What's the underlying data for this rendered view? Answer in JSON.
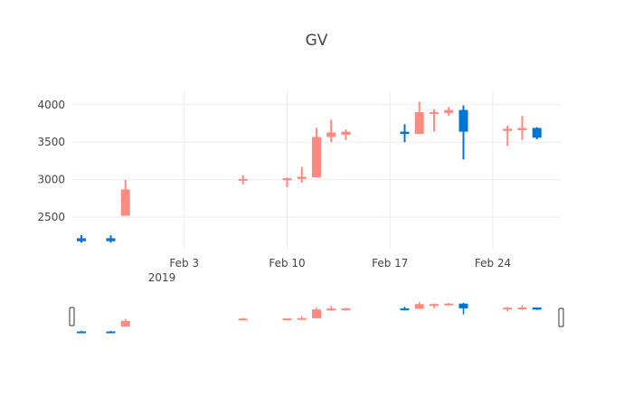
{
  "chart_data": {
    "type": "candlestick",
    "title": "GV",
    "xlabel": "",
    "ylabel": "",
    "ylim": [
      2080,
      4190
    ],
    "x_range": [
      "2019-01-27",
      "2019-02-28"
    ],
    "y_ticks": [
      2500,
      3000,
      3500,
      4000
    ],
    "y_tick_labels": [
      "2500",
      "3000",
      "3500",
      "4000"
    ],
    "x_ticks": [
      "2019-02-03",
      "2019-02-10",
      "2019-02-17",
      "2019-02-24"
    ],
    "x_tick_labels": [
      "Feb 3",
      "Feb 10",
      "Feb 17",
      "Feb 24"
    ],
    "x_tick_sublabel": "2019",
    "grid": true,
    "legend": "none",
    "colors": {
      "increasing": "#0074D9",
      "decreasing": "#FF851B",
      "decreasing_fill": "#FF8A80",
      "grid": "#eeeeee",
      "text": "#444444"
    },
    "rangeslider": true,
    "candles": [
      {
        "date": "2019-01-27",
        "open": 2180,
        "high": 2260,
        "low": 2160,
        "close": 2220
      },
      {
        "date": "2019-01-29",
        "open": 2180,
        "high": 2260,
        "low": 2160,
        "close": 2220
      },
      {
        "date": "2019-01-30",
        "open": 2870,
        "high": 3000,
        "low": 2520,
        "close": 2520
      },
      {
        "date": "2019-02-07",
        "open": 3010,
        "high": 3060,
        "low": 2940,
        "close": 2990
      },
      {
        "date": "2019-02-10",
        "open": 3020,
        "high": 3030,
        "low": 2900,
        "close": 3000
      },
      {
        "date": "2019-02-11",
        "open": 3040,
        "high": 3170,
        "low": 2960,
        "close": 3010
      },
      {
        "date": "2019-02-12",
        "open": 3570,
        "high": 3690,
        "low": 3030,
        "close": 3030
      },
      {
        "date": "2019-02-13",
        "open": 3630,
        "high": 3800,
        "low": 3500,
        "close": 3570
      },
      {
        "date": "2019-02-14",
        "open": 3640,
        "high": 3670,
        "low": 3530,
        "close": 3600
      },
      {
        "date": "2019-02-18",
        "open": 3610,
        "high": 3740,
        "low": 3500,
        "close": 3640
      },
      {
        "date": "2019-02-19",
        "open": 3900,
        "high": 4040,
        "low": 3610,
        "close": 3610
      },
      {
        "date": "2019-02-20",
        "open": 3900,
        "high": 3940,
        "low": 3640,
        "close": 3880
      },
      {
        "date": "2019-02-21",
        "open": 3930,
        "high": 3970,
        "low": 3850,
        "close": 3890
      },
      {
        "date": "2019-02-22",
        "open": 3640,
        "high": 3990,
        "low": 3270,
        "close": 3930
      },
      {
        "date": "2019-02-25",
        "open": 3680,
        "high": 3720,
        "low": 3450,
        "close": 3650
      },
      {
        "date": "2019-02-26",
        "open": 3690,
        "high": 3850,
        "low": 3530,
        "close": 3660
      },
      {
        "date": "2019-02-27",
        "open": 3560,
        "high": 3700,
        "low": 3540,
        "close": 3690
      }
    ]
  }
}
